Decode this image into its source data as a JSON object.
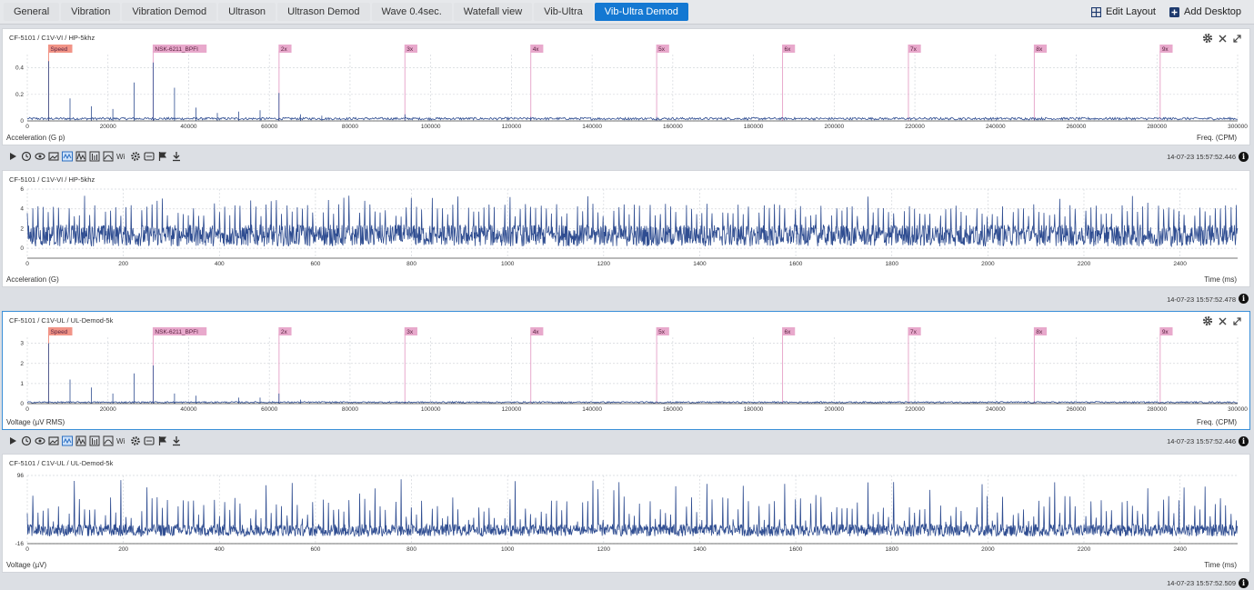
{
  "tabs": [
    {
      "label": "General",
      "active": false
    },
    {
      "label": "Vibration",
      "active": false
    },
    {
      "label": "Vibration Demod",
      "active": false
    },
    {
      "label": "Ultrason",
      "active": false
    },
    {
      "label": "Ultrason Demod",
      "active": false
    },
    {
      "label": "Wave 0.4sec.",
      "active": false
    },
    {
      "label": "Watefall view",
      "active": false
    },
    {
      "label": "Vib-Ultra",
      "active": false
    },
    {
      "label": "Vib-Ultra Demod",
      "active": true
    }
  ],
  "header": {
    "edit_layout": "Edit Layout",
    "add_desktop": "Add Desktop"
  },
  "colors": {
    "accent": "#1478d2",
    "trace": "#2f4d91",
    "marker_pink": "#e8a9cc",
    "marker_speed": "#f19487"
  },
  "icons": [
    "play-icon",
    "history-icon",
    "eye-icon",
    "image-icon",
    "waveform-icon",
    "peaks-icon",
    "harmonics-icon",
    "sidebands-icon",
    "wi-icon",
    "settings-gear-icon",
    "dots-icon",
    "flag-icon",
    "download-icon"
  ],
  "panels": [
    {
      "title": "CF-5101 / C1V-VI / HP-5khz",
      "ylabel": "Acceleration (G p)",
      "xlabel": "Freq. (CPM)",
      "timestamp": "14-07-23 15:57:52.446",
      "chart_data": {
        "type": "line",
        "x_range": [
          0,
          300000
        ],
        "y_range": [
          0,
          0.5
        ],
        "x_ticks": [
          "0",
          "20000",
          "40000",
          "60000",
          "80000",
          "100000",
          "120000",
          "140000",
          "160000",
          "180000",
          "200000",
          "220000",
          "240000",
          "260000",
          "280000",
          "300000"
        ],
        "y_ticks": [
          "0",
          "0.2",
          "0.4"
        ],
        "markers": [
          {
            "label": "Speed",
            "x": 5300,
            "kind": "speed"
          },
          {
            "label": "NSK-6211_BPFI",
            "x": 31200,
            "kind": "pink"
          },
          {
            "label": "2x",
            "x": 62400,
            "kind": "pink"
          },
          {
            "label": "3x",
            "x": 93600,
            "kind": "pink"
          },
          {
            "label": "4x",
            "x": 124800,
            "kind": "pink"
          },
          {
            "label": "5x",
            "x": 156000,
            "kind": "pink"
          },
          {
            "label": "6x",
            "x": 187200,
            "kind": "pink"
          },
          {
            "label": "7x",
            "x": 218400,
            "kind": "pink"
          },
          {
            "label": "8x",
            "x": 249600,
            "kind": "pink"
          },
          {
            "label": "9x",
            "x": 280800,
            "kind": "pink"
          }
        ],
        "peaks": [
          [
            5300,
            0.45
          ],
          [
            10600,
            0.17
          ],
          [
            15900,
            0.11
          ],
          [
            21200,
            0.09
          ],
          [
            26500,
            0.29
          ],
          [
            31200,
            0.44
          ],
          [
            36500,
            0.25
          ],
          [
            41800,
            0.1
          ],
          [
            47100,
            0.06
          ],
          [
            52400,
            0.07
          ],
          [
            57700,
            0.08
          ],
          [
            62400,
            0.21
          ],
          [
            67700,
            0.05
          ],
          [
            73000,
            0.04
          ],
          [
            93600,
            0.05
          ],
          [
            124800,
            0.03
          ],
          [
            156000,
            0.03
          ]
        ],
        "noise": 0.02
      }
    },
    {
      "title": "CF-5101 / C1V-VI / HP-5khz",
      "ylabel": "Acceleration (G)",
      "xlabel": "Time (ms)",
      "timestamp": "14-07-23 15:57:52.478",
      "chart_data": {
        "type": "line",
        "x_range": [
          0,
          2520
        ],
        "y_range": [
          -1,
          6
        ],
        "x_ticks": [
          "0",
          "200",
          "400",
          "600",
          "800",
          "1000",
          "1200",
          "1400",
          "1600",
          "1800",
          "2000",
          "2200",
          "2400"
        ],
        "y_ticks": [
          "0",
          "2",
          "4",
          "6"
        ],
        "baseline": 1.3,
        "noise": 1.1,
        "spike_period_ms": 10.8,
        "spike_height": [
          3.2,
          5.4
        ]
      }
    },
    {
      "title": "CF-5101 / C1V-UL / UL-Demod-5k",
      "ylabel": "Voltage (µV RMS)",
      "xlabel": "Freq. (CPM)",
      "timestamp": "14-07-23 15:57:52.446",
      "chart_data": {
        "type": "line",
        "x_range": [
          0,
          300000
        ],
        "y_range": [
          0,
          3.3
        ],
        "x_ticks": [
          "0",
          "20000",
          "40000",
          "60000",
          "80000",
          "100000",
          "120000",
          "140000",
          "160000",
          "180000",
          "200000",
          "220000",
          "240000",
          "260000",
          "280000",
          "300000"
        ],
        "y_ticks": [
          "0",
          "1",
          "2",
          "3"
        ],
        "markers": [
          {
            "label": "Speed",
            "x": 5300,
            "kind": "speed"
          },
          {
            "label": "NSK-6211_BPFI",
            "x": 31200,
            "kind": "pink"
          },
          {
            "label": "2x",
            "x": 62400,
            "kind": "pink"
          },
          {
            "label": "3x",
            "x": 93600,
            "kind": "pink"
          },
          {
            "label": "4x",
            "x": 124800,
            "kind": "pink"
          },
          {
            "label": "5x",
            "x": 156000,
            "kind": "pink"
          },
          {
            "label": "6x",
            "x": 187200,
            "kind": "pink"
          },
          {
            "label": "7x",
            "x": 218400,
            "kind": "pink"
          },
          {
            "label": "8x",
            "x": 249600,
            "kind": "pink"
          },
          {
            "label": "9x",
            "x": 280800,
            "kind": "pink"
          }
        ],
        "peaks": [
          [
            5300,
            3.0
          ],
          [
            10600,
            1.2
          ],
          [
            15900,
            0.8
          ],
          [
            21200,
            0.5
          ],
          [
            26500,
            1.5
          ],
          [
            31200,
            1.9
          ],
          [
            36500,
            0.5
          ],
          [
            41800,
            0.4
          ],
          [
            52400,
            0.3
          ],
          [
            57700,
            0.3
          ],
          [
            62400,
            0.5
          ],
          [
            67700,
            0.2
          ],
          [
            93600,
            0.1
          ]
        ],
        "noise": 0.08
      }
    },
    {
      "title": "CF-5101 / C1V-UL / UL-Demod-5k",
      "ylabel": "Voltage (µV)",
      "xlabel": "Time (ms)",
      "timestamp": "14-07-23 15:57:52.509",
      "chart_data": {
        "type": "line",
        "x_range": [
          0,
          2520
        ],
        "y_range": [
          -16,
          96
        ],
        "x_ticks": [
          "0",
          "200",
          "400",
          "600",
          "800",
          "1000",
          "1200",
          "1400",
          "1600",
          "1800",
          "2000",
          "2200",
          "2400"
        ],
        "y_ticks": [
          "-16",
          "96"
        ],
        "baseline": 6,
        "noise": 10,
        "spike_period_ms": 10.8,
        "spike_height": [
          20,
          92
        ]
      }
    }
  ]
}
